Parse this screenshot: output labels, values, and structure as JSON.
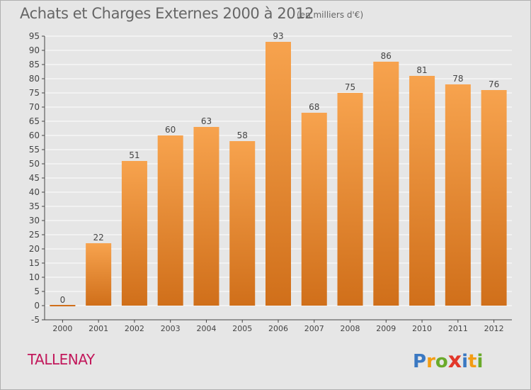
{
  "chart_data": {
    "type": "bar",
    "title": "Achats et Charges Externes 2000 à 2012",
    "subtitle": "(en milliers d'€)",
    "categories": [
      "2000",
      "2001",
      "2002",
      "2003",
      "2004",
      "2005",
      "2006",
      "2007",
      "2008",
      "2009",
      "2010",
      "2011",
      "2012"
    ],
    "values": [
      0,
      22,
      51,
      60,
      63,
      58,
      93,
      68,
      75,
      86,
      81,
      78,
      76
    ],
    "ylim": [
      -5,
      95
    ],
    "yticks": [
      -5,
      0,
      5,
      10,
      15,
      20,
      25,
      30,
      35,
      40,
      45,
      50,
      55,
      60,
      65,
      70,
      75,
      80,
      85,
      90,
      95
    ],
    "grid": true,
    "xlabel": "",
    "ylabel": ""
  },
  "place": "TALLENAY",
  "logo": {
    "letters": [
      "P",
      "r",
      "o",
      "x",
      "i",
      "t",
      "i"
    ]
  },
  "colors": {
    "bar_top": "#f7a34e",
    "bar_bottom": "#d06f1a",
    "background": "#e6e6e6",
    "grid": "#ffffff",
    "title": "#666666",
    "place": "#c2185b",
    "logo": [
      "#3a78c2",
      "#f39c12",
      "#6aaa2a",
      "#e2372a",
      "#3a78c2",
      "#f39c12",
      "#6aaa2a"
    ]
  }
}
